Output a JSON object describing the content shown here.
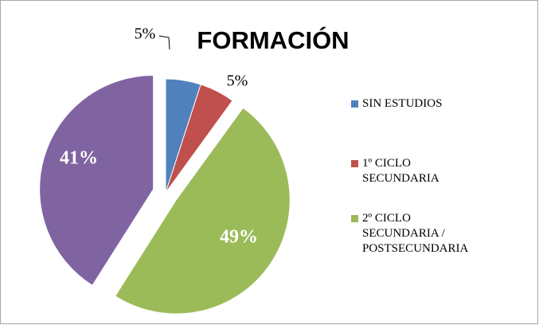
{
  "chart_data": {
    "type": "pie",
    "title": "FORMACIÓN",
    "categories": [
      "SIN ESTUDIOS",
      "1º CICLO SECUNDARIA",
      "2º CICLO SECUNDARIA / POSTSECUNDARIA",
      null
    ],
    "values": [
      5,
      5,
      49,
      41
    ],
    "value_labels": [
      "5%",
      "5%",
      "49%",
      "41%"
    ],
    "colors": [
      "#4f81bd",
      "#c0504d",
      "#9bbb59",
      "#8064a2"
    ],
    "legend": "right"
  }
}
